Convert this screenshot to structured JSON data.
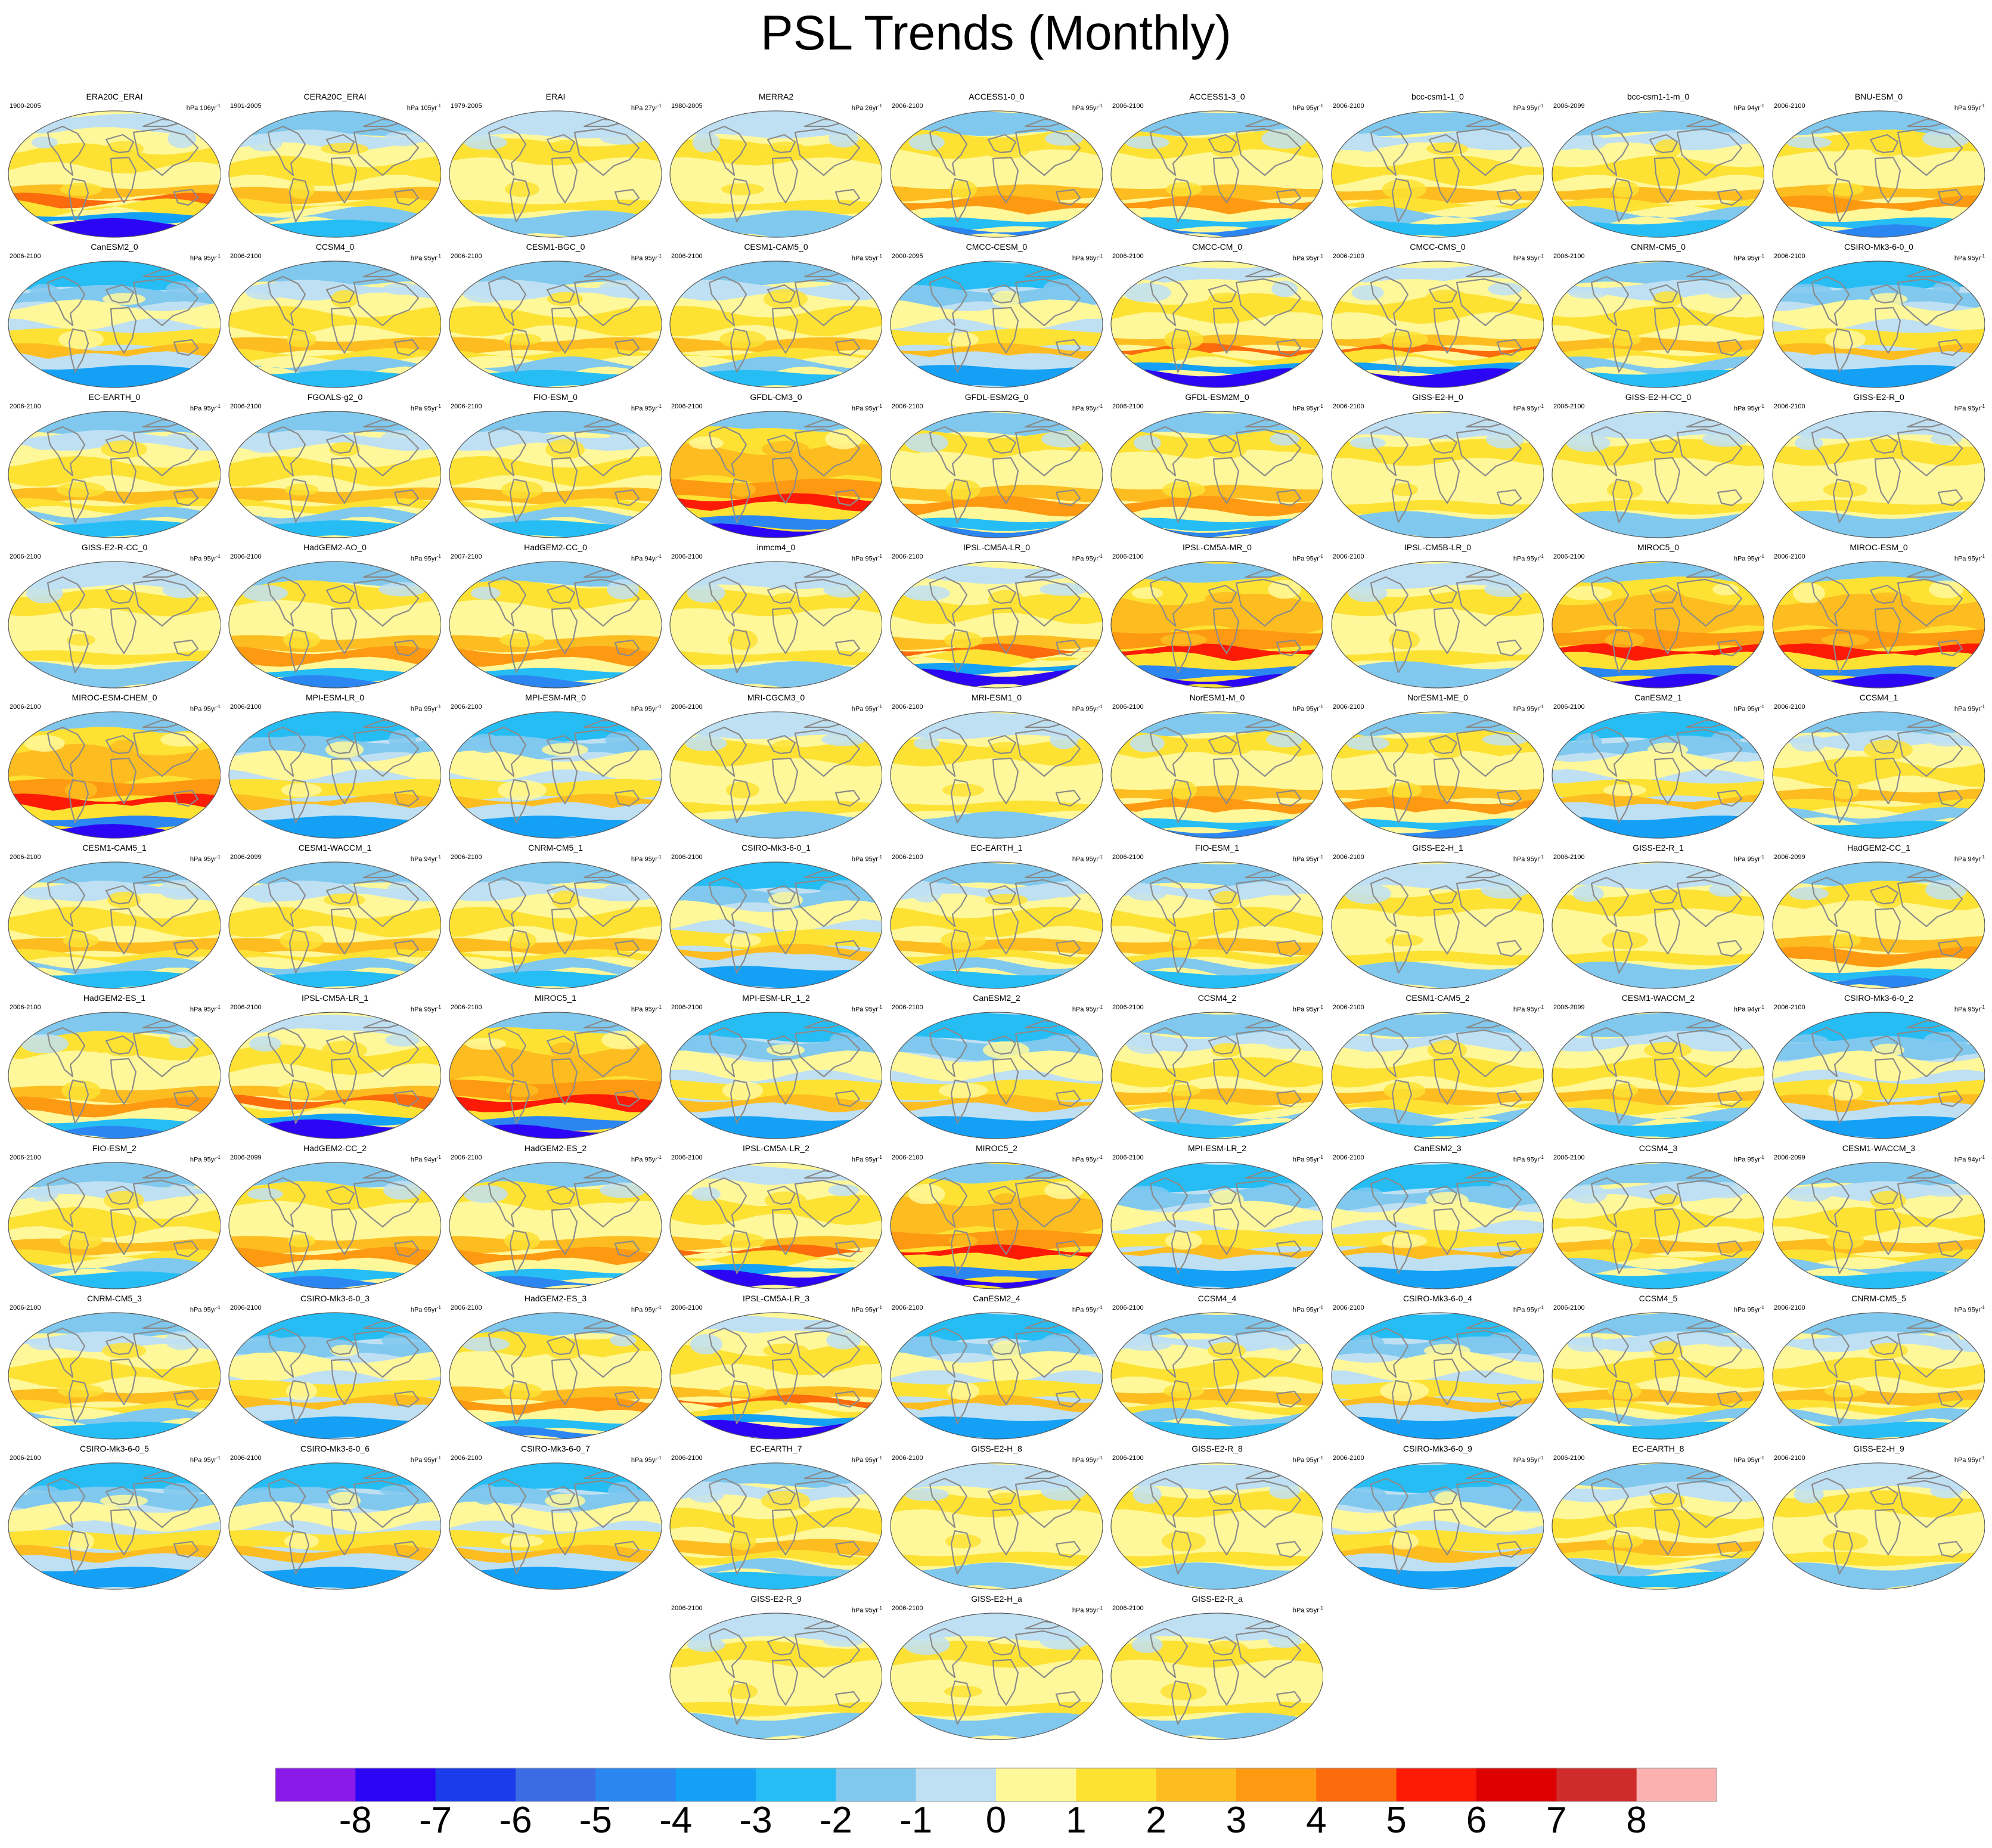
{
  "title": "PSL Trends (Monthly)",
  "chart_data": {
    "type": "heatmap",
    "title": "PSL Trends (Monthly)",
    "projection": "Robinson global maps, one per dataset",
    "layout": "9 panels per row; last row centered",
    "panels": [
      {
        "name": "ERA20C_ERAI",
        "period": "1900-2005",
        "units": "hPa 106yr",
        "pattern": "southern-low"
      },
      {
        "name": "CERA20C_ERAI",
        "period": "1901-2005",
        "units": "hPa 105yr",
        "pattern": "neutral"
      },
      {
        "name": "ERAI",
        "period": "1979-2005",
        "units": "hPa 27yr",
        "pattern": "weak"
      },
      {
        "name": "MERRA2",
        "period": "1980-2005",
        "units": "hPa 26yr",
        "pattern": "weak"
      },
      {
        "name": "ACCESS1-0_0",
        "period": "2006-2100",
        "units": "hPa 95yr",
        "pattern": "warm-band"
      },
      {
        "name": "ACCESS1-3_0",
        "period": "2006-2100",
        "units": "hPa 95yr",
        "pattern": "warm-band"
      },
      {
        "name": "bcc-csm1-1_0",
        "period": "2006-2100",
        "units": "hPa 95yr",
        "pattern": "neutral"
      },
      {
        "name": "bcc-csm1-1-m_0",
        "period": "2006-2099",
        "units": "hPa 94yr",
        "pattern": "neutral"
      },
      {
        "name": "BNU-ESM_0",
        "period": "2006-2100",
        "units": "hPa 95yr",
        "pattern": "warm-band"
      },
      {
        "name": "CanESM2_0",
        "period": "2006-2100",
        "units": "hPa 95yr",
        "pattern": "cool"
      },
      {
        "name": "CCSM4_0",
        "period": "2006-2100",
        "units": "hPa 95yr",
        "pattern": "neutral"
      },
      {
        "name": "CESM1-BGC_0",
        "period": "2006-2100",
        "units": "hPa 95yr",
        "pattern": "neutral"
      },
      {
        "name": "CESM1-CAM5_0",
        "period": "2006-2100",
        "units": "hPa 95yr",
        "pattern": "neutral"
      },
      {
        "name": "CMCC-CESM_0",
        "period": "2000-2095",
        "units": "hPa 96yr",
        "pattern": "cool"
      },
      {
        "name": "CMCC-CM_0",
        "period": "2006-2100",
        "units": "hPa 95yr",
        "pattern": "southern-low"
      },
      {
        "name": "CMCC-CMS_0",
        "period": "2006-2100",
        "units": "hPa 95yr",
        "pattern": "southern-low"
      },
      {
        "name": "CNRM-CM5_0",
        "period": "2006-2100",
        "units": "hPa 95yr",
        "pattern": "neutral"
      },
      {
        "name": "CSIRO-Mk3-6-0_0",
        "period": "2006-2100",
        "units": "hPa 95yr",
        "pattern": "cool"
      },
      {
        "name": "EC-EARTH_0",
        "period": "2006-2100",
        "units": "hPa 95yr",
        "pattern": "neutral"
      },
      {
        "name": "FGOALS-g2_0",
        "period": "2006-2100",
        "units": "hPa 95yr",
        "pattern": "neutral"
      },
      {
        "name": "FIO-ESM_0",
        "period": "2006-2100",
        "units": "hPa 95yr",
        "pattern": "neutral"
      },
      {
        "name": "GFDL-CM3_0",
        "period": "2006-2100",
        "units": "hPa 95yr",
        "pattern": "strong"
      },
      {
        "name": "GFDL-ESM2G_0",
        "period": "2006-2100",
        "units": "hPa 95yr",
        "pattern": "warm-band"
      },
      {
        "name": "GFDL-ESM2M_0",
        "period": "2006-2100",
        "units": "hPa 95yr",
        "pattern": "warm-band"
      },
      {
        "name": "GISS-E2-H_0",
        "period": "2006-2100",
        "units": "hPa 95yr",
        "pattern": "weak"
      },
      {
        "name": "GISS-E2-H-CC_0",
        "period": "2006-2100",
        "units": "hPa 95yr",
        "pattern": "weak"
      },
      {
        "name": "GISS-E2-R_0",
        "period": "2006-2100",
        "units": "hPa 95yr",
        "pattern": "weak"
      },
      {
        "name": "GISS-E2-R-CC_0",
        "period": "2006-2100",
        "units": "hPa 95yr",
        "pattern": "weak"
      },
      {
        "name": "HadGEM2-AO_0",
        "period": "2006-2100",
        "units": "hPa 95yr",
        "pattern": "warm-band"
      },
      {
        "name": "HadGEM2-CC_0",
        "period": "2007-2100",
        "units": "hPa 94yr",
        "pattern": "warm-band"
      },
      {
        "name": "inmcm4_0",
        "period": "2006-2100",
        "units": "hPa 95yr",
        "pattern": "weak"
      },
      {
        "name": "IPSL-CM5A-LR_0",
        "period": "2006-2100",
        "units": "hPa 95yr",
        "pattern": "southern-low"
      },
      {
        "name": "IPSL-CM5A-MR_0",
        "period": "2006-2100",
        "units": "hPa 95yr",
        "pattern": "strong"
      },
      {
        "name": "IPSL-CM5B-LR_0",
        "period": "2006-2100",
        "units": "hPa 95yr",
        "pattern": "weak"
      },
      {
        "name": "MIROC5_0",
        "period": "2006-2100",
        "units": "hPa 95yr",
        "pattern": "strong"
      },
      {
        "name": "MIROC-ESM_0",
        "period": "2006-2100",
        "units": "hPa 95yr",
        "pattern": "strong"
      },
      {
        "name": "MIROC-ESM-CHEM_0",
        "period": "2006-2100",
        "units": "hPa 95yr",
        "pattern": "strong"
      },
      {
        "name": "MPI-ESM-LR_0",
        "period": "2006-2100",
        "units": "hPa 95yr",
        "pattern": "cool"
      },
      {
        "name": "MPI-ESM-MR_0",
        "period": "2006-2100",
        "units": "hPa 95yr",
        "pattern": "cool"
      },
      {
        "name": "MRI-CGCM3_0",
        "period": "2006-2100",
        "units": "hPa 95yr",
        "pattern": "weak"
      },
      {
        "name": "MRI-ESM1_0",
        "period": "2006-2100",
        "units": "hPa 95yr",
        "pattern": "weak"
      },
      {
        "name": "NorESM1-M_0",
        "period": "2006-2100",
        "units": "hPa 95yr",
        "pattern": "warm-band"
      },
      {
        "name": "NorESM1-ME_0",
        "period": "2006-2100",
        "units": "hPa 95yr",
        "pattern": "warm-band"
      },
      {
        "name": "CanESM2_1",
        "period": "2006-2100",
        "units": "hPa 95yr",
        "pattern": "cool"
      },
      {
        "name": "CCSM4_1",
        "period": "2006-2100",
        "units": "hPa 95yr",
        "pattern": "neutral"
      },
      {
        "name": "CESM1-CAM5_1",
        "period": "2006-2100",
        "units": "hPa 95yr",
        "pattern": "neutral"
      },
      {
        "name": "CESM1-WACCM_1",
        "period": "2006-2099",
        "units": "hPa 94yr",
        "pattern": "neutral"
      },
      {
        "name": "CNRM-CM5_1",
        "period": "2006-2100",
        "units": "hPa 95yr",
        "pattern": "neutral"
      },
      {
        "name": "CSIRO-Mk3-6-0_1",
        "period": "2006-2100",
        "units": "hPa 95yr",
        "pattern": "cool"
      },
      {
        "name": "EC-EARTH_1",
        "period": "2006-2100",
        "units": "hPa 95yr",
        "pattern": "neutral"
      },
      {
        "name": "FIO-ESM_1",
        "period": "2006-2100",
        "units": "hPa 95yr",
        "pattern": "neutral"
      },
      {
        "name": "GISS-E2-H_1",
        "period": "2006-2100",
        "units": "hPa 95yr",
        "pattern": "weak"
      },
      {
        "name": "GISS-E2-R_1",
        "period": "2006-2100",
        "units": "hPa 95yr",
        "pattern": "weak"
      },
      {
        "name": "HadGEM2-CC_1",
        "period": "2006-2099",
        "units": "hPa 94yr",
        "pattern": "warm-band"
      },
      {
        "name": "HadGEM2-ES_1",
        "period": "2006-2100",
        "units": "hPa 95yr",
        "pattern": "warm-band"
      },
      {
        "name": "IPSL-CM5A-LR_1",
        "period": "2006-2100",
        "units": "hPa 95yr",
        "pattern": "southern-low"
      },
      {
        "name": "MIROC5_1",
        "period": "2006-2100",
        "units": "hPa 95yr",
        "pattern": "strong"
      },
      {
        "name": "MPI-ESM-LR_1_2",
        "period": "2006-2100",
        "units": "hPa 95yr",
        "pattern": "cool"
      },
      {
        "name": "CanESM2_2",
        "period": "2006-2100",
        "units": "hPa 95yr",
        "pattern": "cool"
      },
      {
        "name": "CCSM4_2",
        "period": "2006-2100",
        "units": "hPa 95yr",
        "pattern": "neutral"
      },
      {
        "name": "CESM1-CAM5_2",
        "period": "2006-2100",
        "units": "hPa 95yr",
        "pattern": "neutral"
      },
      {
        "name": "CESM1-WACCM_2",
        "period": "2006-2099",
        "units": "hPa 94yr",
        "pattern": "neutral"
      },
      {
        "name": "CSIRO-Mk3-6-0_2",
        "period": "2006-2100",
        "units": "hPa 95yr",
        "pattern": "cool"
      },
      {
        "name": "FIO-ESM_2",
        "period": "2006-2100",
        "units": "hPa 95yr",
        "pattern": "neutral"
      },
      {
        "name": "HadGEM2-CC_2",
        "period": "2006-2099",
        "units": "hPa 94yr",
        "pattern": "warm-band"
      },
      {
        "name": "HadGEM2-ES_2",
        "period": "2006-2100",
        "units": "hPa 95yr",
        "pattern": "warm-band"
      },
      {
        "name": "IPSL-CM5A-LR_2",
        "period": "2006-2100",
        "units": "hPa 95yr",
        "pattern": "southern-low"
      },
      {
        "name": "MIROC5_2",
        "period": "2006-2100",
        "units": "hPa 95yr",
        "pattern": "strong"
      },
      {
        "name": "MPI-ESM-LR_2",
        "period": "2006-2100",
        "units": "hPa 95yr",
        "pattern": "cool"
      },
      {
        "name": "CanESM2_3",
        "period": "2006-2100",
        "units": "hPa 95yr",
        "pattern": "cool"
      },
      {
        "name": "CCSM4_3",
        "period": "2006-2100",
        "units": "hPa 95yr",
        "pattern": "neutral"
      },
      {
        "name": "CESM1-WACCM_3",
        "period": "2006-2099",
        "units": "hPa 94yr",
        "pattern": "neutral"
      },
      {
        "name": "CNRM-CM5_3",
        "period": "2006-2100",
        "units": "hPa 95yr",
        "pattern": "neutral"
      },
      {
        "name": "CSIRO-Mk3-6-0_3",
        "period": "2006-2100",
        "units": "hPa 95yr",
        "pattern": "cool"
      },
      {
        "name": "HadGEM2-ES_3",
        "period": "2006-2100",
        "units": "hPa 95yr",
        "pattern": "warm-band"
      },
      {
        "name": "IPSL-CM5A-LR_3",
        "period": "2006-2100",
        "units": "hPa 95yr",
        "pattern": "southern-low"
      },
      {
        "name": "CanESM2_4",
        "period": "2006-2100",
        "units": "hPa 95yr",
        "pattern": "cool"
      },
      {
        "name": "CCSM4_4",
        "period": "2006-2100",
        "units": "hPa 95yr",
        "pattern": "neutral"
      },
      {
        "name": "CSIRO-Mk3-6-0_4",
        "period": "2006-2100",
        "units": "hPa 95yr",
        "pattern": "cool"
      },
      {
        "name": "CCSM4_5",
        "period": "2006-2100",
        "units": "hPa 95yr",
        "pattern": "neutral"
      },
      {
        "name": "CNRM-CM5_5",
        "period": "2006-2100",
        "units": "hPa 95yr",
        "pattern": "neutral"
      },
      {
        "name": "CSIRO-Mk3-6-0_5",
        "period": "2006-2100",
        "units": "hPa 95yr",
        "pattern": "cool"
      },
      {
        "name": "CSIRO-Mk3-6-0_6",
        "period": "2006-2100",
        "units": "hPa 95yr",
        "pattern": "cool"
      },
      {
        "name": "CSIRO-Mk3-6-0_7",
        "period": "2006-2100",
        "units": "hPa 95yr",
        "pattern": "cool"
      },
      {
        "name": "EC-EARTH_7",
        "period": "2006-2100",
        "units": "hPa 95yr",
        "pattern": "neutral"
      },
      {
        "name": "GISS-E2-H_8",
        "period": "2006-2100",
        "units": "hPa 95yr",
        "pattern": "weak"
      },
      {
        "name": "GISS-E2-R_8",
        "period": "2006-2100",
        "units": "hPa 95yr",
        "pattern": "weak"
      },
      {
        "name": "CSIRO-Mk3-6-0_9",
        "period": "2006-2100",
        "units": "hPa 95yr",
        "pattern": "cool"
      },
      {
        "name": "EC-EARTH_8",
        "period": "2006-2100",
        "units": "hPa 95yr",
        "pattern": "neutral"
      },
      {
        "name": "GISS-E2-H_9",
        "period": "2006-2100",
        "units": "hPa 95yr",
        "pattern": "weak"
      },
      {
        "name": "GISS-E2-R_9",
        "period": "2006-2100",
        "units": "hPa 95yr",
        "pattern": "weak"
      },
      {
        "name": "GISS-E2-H_a",
        "period": "2006-2100",
        "units": "hPa 95yr",
        "pattern": "weak"
      },
      {
        "name": "GISS-E2-R_a",
        "period": "2006-2100",
        "units": "hPa 95yr",
        "pattern": "weak"
      }
    ],
    "colorbar": {
      "tick_labels": [
        "-8",
        "-7",
        "-6",
        "-5",
        "-4",
        "-3",
        "-2",
        "-1",
        "0",
        "1",
        "2",
        "3",
        "4",
        "5",
        "6",
        "7",
        "8"
      ],
      "colors": [
        "#8a1ae8",
        "#2c05f5",
        "#1a3ceb",
        "#3b6ce6",
        "#2b86f2",
        "#14a0f5",
        "#26bdf5",
        "#80c8ee",
        "#bfe0f3",
        "#fff89a",
        "#fde234",
        "#fdbd21",
        "#fd9a12",
        "#fc6b0c",
        "#fd1a07",
        "#dc0000",
        "#cf2b2b",
        "#fcb1b1"
      ]
    }
  }
}
